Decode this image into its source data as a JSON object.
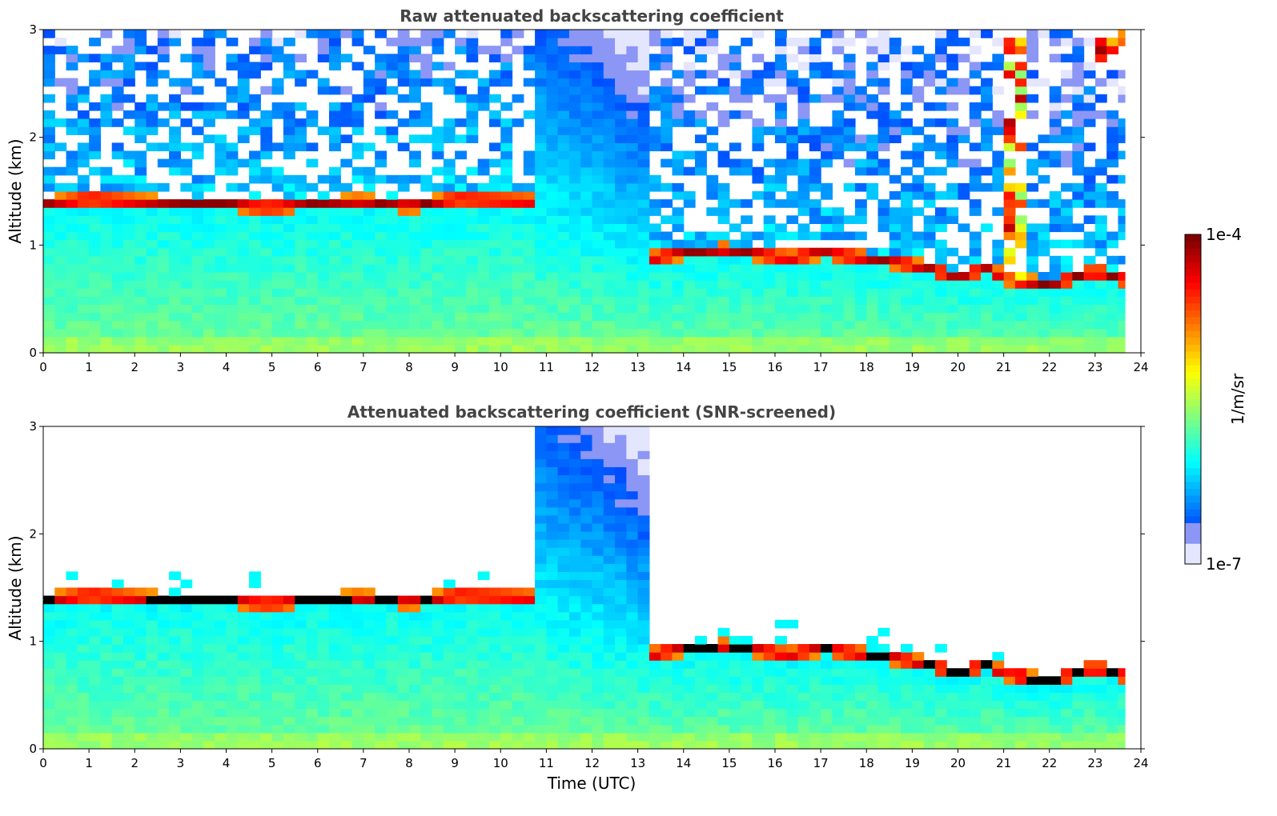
{
  "chart_data": [
    {
      "type": "heatmap",
      "title": "Raw attenuated backscattering coefficient",
      "xlabel": "",
      "ylabel": "Altitude (km)",
      "xlim": [
        0,
        24
      ],
      "ylim": [
        0,
        3
      ],
      "x_ticks": [
        "0",
        "1",
        "2",
        "3",
        "4",
        "5",
        "6",
        "7",
        "8",
        "9",
        "10",
        "11",
        "12",
        "13",
        "14",
        "15",
        "16",
        "17",
        "18",
        "19",
        "20",
        "21",
        "22",
        "23",
        "24"
      ],
      "y_ticks": [
        "0",
        "1",
        "2",
        "3"
      ],
      "data_end_hour": 23.65,
      "screened": false,
      "cloud_base_km": [
        [
          0,
          1.33
        ],
        [
          1,
          1.37
        ],
        [
          2,
          1.35
        ],
        [
          3,
          1.33
        ],
        [
          4,
          1.33
        ],
        [
          4.5,
          1.3
        ],
        [
          5,
          1.29
        ],
        [
          6,
          1.33
        ],
        [
          7,
          1.35
        ],
        [
          8,
          1.3
        ],
        [
          9,
          1.37
        ],
        [
          10,
          1.36
        ],
        [
          10.75,
          1.35
        ],
        [
          13.3,
          0.82
        ],
        [
          14,
          0.87
        ],
        [
          14.9,
          0.9
        ],
        [
          16.3,
          0.82
        ],
        [
          17,
          0.87
        ],
        [
          18,
          0.82
        ],
        [
          19,
          0.76
        ],
        [
          20,
          0.65
        ],
        [
          20.6,
          0.72
        ],
        [
          21.2,
          0.62
        ],
        [
          22,
          0.57
        ],
        [
          23,
          0.7
        ],
        [
          23.6,
          0.62
        ]
      ]
    },
    {
      "type": "heatmap",
      "title": "Attenuated backscattering coefficient (SNR-screened)",
      "xlabel": "Time (UTC)",
      "ylabel": "Altitude (km)",
      "xlim": [
        0,
        24
      ],
      "ylim": [
        0,
        3
      ],
      "x_ticks": [
        "0",
        "1",
        "2",
        "3",
        "4",
        "5",
        "6",
        "7",
        "8",
        "9",
        "10",
        "11",
        "12",
        "13",
        "14",
        "15",
        "16",
        "17",
        "18",
        "19",
        "20",
        "21",
        "22",
        "23",
        "24"
      ],
      "y_ticks": [
        "0",
        "1",
        "2",
        "3"
      ],
      "data_end_hour": 23.65,
      "screened": true
    }
  ],
  "colorbar": {
    "label": "1/m/sr",
    "max_label": "1e-4",
    "min_label": "1e-7",
    "scale": "log",
    "colormap": "jet"
  },
  "colors": {
    "title": "#444444",
    "axes": "#000000",
    "background": "#ffffff"
  }
}
